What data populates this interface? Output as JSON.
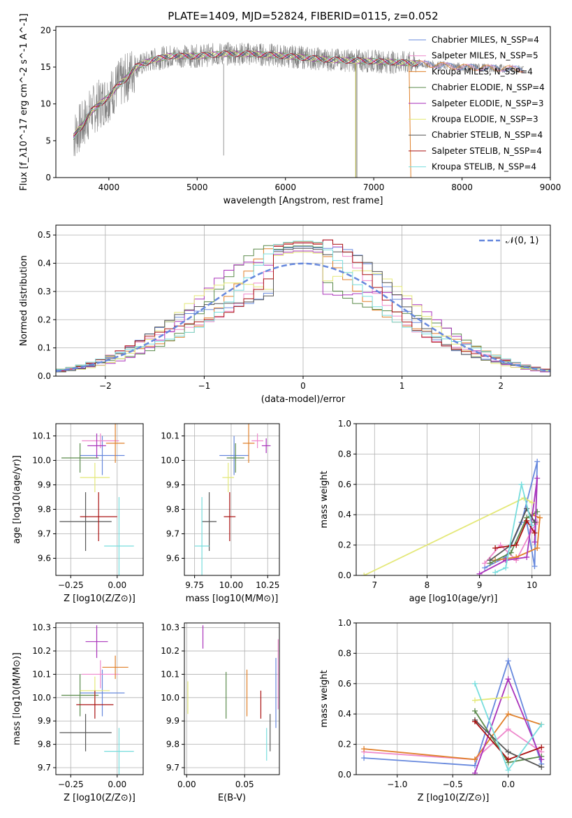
{
  "figure_title": "PLATE=1409, MJD=52824, FIBERID=0115, z=0.052",
  "series_colors": [
    "#6688dd",
    "#ee88cc",
    "#e0802a",
    "#5a8a4a",
    "#aa33bb",
    "#e4e878",
    "#555555",
    "#aa1111",
    "#77dddd"
  ],
  "chart_data": [
    {
      "id": "spectrum",
      "type": "line",
      "title": "PLATE=1409, MJD=52824, FIBERID=0115, z=0.052",
      "xlabel": "wavelength [Angstrom, rest frame]",
      "ylabel": "Flux [f_λ10^-17 erg cm^-2 s^-1 A^-1]",
      "xlim": [
        3400,
        9000
      ],
      "ylim": [
        0,
        20.5
      ],
      "xticks": [
        "4000",
        "5000",
        "6000",
        "7000",
        "8000",
        "9000"
      ],
      "yticks": [
        "0",
        "5",
        "10",
        "15",
        "20"
      ],
      "data_color": "#808080",
      "data_envelope": [
        [
          3600,
          5.5
        ],
        [
          3650,
          6.5
        ],
        [
          3700,
          7
        ],
        [
          3800,
          9
        ],
        [
          3900,
          10
        ],
        [
          4000,
          11
        ],
        [
          4100,
          12.5
        ],
        [
          4200,
          13.5
        ],
        [
          4300,
          15
        ],
        [
          4500,
          16
        ],
        [
          4700,
          16.5
        ],
        [
          5000,
          16.5
        ],
        [
          5300,
          16.8
        ],
        [
          5600,
          16.8
        ],
        [
          6000,
          16.5
        ],
        [
          6500,
          16
        ],
        [
          7000,
          15.8
        ],
        [
          7500,
          15.5
        ],
        [
          8000,
          15
        ],
        [
          8500,
          14.8
        ],
        [
          8700,
          14.7
        ]
      ],
      "legend": [
        "Chabrier MILES, N_SSP=4",
        "Salpeter MILES, N_SSP=5",
        "Kroupa MILES, N_SSP=4",
        "Chabrier ELODIE, N_SSP=4",
        "Salpeter ELODIE, N_SSP=3",
        "Kroupa ELODIE, N_SSP=3",
        "Chabrier STELIB, N_SSP=4",
        "Salpeter STELIB, N_SSP=4",
        "Kroupa STELIB, N_SSP=4"
      ],
      "grid": false
    },
    {
      "id": "residuals",
      "type": "step",
      "xlabel": "(data-model)/error",
      "ylabel": "Normed distribution",
      "xlim": [
        -2.5,
        2.5
      ],
      "ylim": [
        0,
        0.535
      ],
      "xticks": [
        "−2",
        "−1",
        "0",
        "1",
        "2"
      ],
      "yticks": [
        "0.0",
        "0.1",
        "0.2",
        "0.3",
        "0.4",
        "0.5"
      ],
      "legend": [
        "𝒩(0, 1)"
      ],
      "grid": true
    },
    {
      "id": "age_vs_Z",
      "type": "errorbar",
      "xlabel": "Z [log10(Z/Z⊙)]",
      "ylabel": "age [log10(age/yr)]",
      "xlim": [
        -0.33,
        0.14
      ],
      "ylim": [
        9.53,
        10.15
      ],
      "xticks": [
        "−0.25",
        "0.00"
      ],
      "yticks": [
        "9.6",
        "9.7",
        "9.8",
        "9.9",
        "10.0",
        "10.1"
      ],
      "points": [
        [
          -0.08,
          10.02,
          0.12,
          0.08
        ],
        [
          -0.09,
          10.08,
          0.1,
          0.03
        ],
        [
          -0.01,
          10.07,
          0.05,
          0.08
        ],
        [
          -0.2,
          10.01,
          0.1,
          0.06
        ],
        [
          -0.11,
          10.06,
          0.05,
          0.05
        ],
        [
          -0.12,
          9.93,
          0.08,
          0.06
        ],
        [
          -0.17,
          9.75,
          0.14,
          0.12
        ],
        [
          -0.1,
          9.77,
          0.1,
          0.1
        ],
        [
          0.01,
          9.65,
          0.08,
          0.2
        ]
      ],
      "grid": true
    },
    {
      "id": "age_vs_mass",
      "type": "errorbar",
      "xlabel": "mass [log10(M/M⊙)]",
      "ylabel": "",
      "xlim": [
        9.68,
        10.33
      ],
      "ylim": [
        9.53,
        10.15
      ],
      "xticks": [
        "9.75",
        "10.00",
        "10.25"
      ],
      "yticks": [
        "9.6",
        "9.7",
        "9.8",
        "9.9",
        "10.0",
        "10.1"
      ],
      "points": [
        [
          10.02,
          10.02,
          0.1,
          0.08
        ],
        [
          10.18,
          10.08,
          0.04,
          0.03
        ],
        [
          10.12,
          10.07,
          0.04,
          0.08
        ],
        [
          10.03,
          10.01,
          0.06,
          0.06
        ],
        [
          10.24,
          10.06,
          0.03,
          0.03
        ],
        [
          9.98,
          9.93,
          0.04,
          0.06
        ],
        [
          9.85,
          9.75,
          0.05,
          0.12
        ],
        [
          9.99,
          9.77,
          0.04,
          0.1
        ],
        [
          9.8,
          9.65,
          0.05,
          0.2
        ]
      ],
      "grid": true
    },
    {
      "id": "massweight_vs_age",
      "type": "line",
      "xlabel": "age [log10(age/yr)]",
      "ylabel": "mass weight",
      "xlim": [
        6.65,
        10.35
      ],
      "ylim": [
        0,
        1.0
      ],
      "xticks": [
        "7",
        "8",
        "9",
        "10"
      ],
      "yticks": [
        "0.0",
        "0.2",
        "0.4",
        "0.6",
        "0.8",
        "1.0"
      ],
      "series": [
        {
          "x": [
            9.1,
            9.5,
            9.8,
            10.1,
            10.05,
            9.9
          ],
          "y": [
            0.05,
            0.12,
            0.35,
            0.75,
            0.06,
            0.35
          ]
        },
        {
          "x": [
            9.1,
            9.4,
            9.7,
            10.0,
            10.1
          ],
          "y": [
            0.08,
            0.2,
            0.1,
            0.3,
            0.35
          ]
        },
        {
          "x": [
            9.3,
            9.7,
            10.1,
            10.15,
            10.0
          ],
          "y": [
            0.1,
            0.12,
            0.18,
            0.38,
            0.4
          ]
        },
        {
          "x": [
            9.2,
            9.6,
            9.9,
            10.1
          ],
          "y": [
            0.08,
            0.15,
            0.38,
            0.42
          ]
        },
        {
          "x": [
            9.0,
            9.5,
            9.9,
            10.1,
            10.05
          ],
          "y": [
            0.01,
            0.1,
            0.12,
            0.64,
            0.22
          ]
        },
        {
          "x": [
            6.8,
            9.85,
            10.0
          ],
          "y": [
            0.0,
            0.51,
            0.48
          ]
        },
        {
          "x": [
            9.2,
            9.6,
            9.9,
            10.05
          ],
          "y": [
            0.1,
            0.2,
            0.44,
            0.35
          ]
        },
        {
          "x": [
            9.3,
            9.7,
            9.9,
            10.05
          ],
          "y": [
            0.18,
            0.2,
            0.36,
            0.28
          ]
        },
        {
          "x": [
            9.3,
            9.5,
            9.8,
            10.0
          ],
          "y": [
            0.02,
            0.05,
            0.6,
            0.33
          ]
        }
      ],
      "grid": true
    },
    {
      "id": "mass_vs_Z",
      "type": "errorbar",
      "xlabel": "Z [log10(Z/Z⊙)]",
      "ylabel": "mass [log10(M/M⊙)]",
      "xlim": [
        -0.33,
        0.14
      ],
      "ylim": [
        9.67,
        10.32
      ],
      "xticks": [
        "−0.25",
        "0.00"
      ],
      "yticks": [
        "9.7",
        "9.8",
        "9.9",
        "10.0",
        "10.1",
        "10.2",
        "10.3"
      ],
      "points": [
        [
          -0.08,
          10.02,
          0.12,
          0.1
        ],
        [
          -0.09,
          10.1,
          0.1,
          0.06
        ],
        [
          -0.01,
          10.13,
          0.07,
          0.05
        ],
        [
          -0.2,
          10.01,
          0.1,
          0.09
        ],
        [
          -0.11,
          10.24,
          0.06,
          0.07
        ],
        [
          -0.12,
          10.03,
          0.08,
          0.06
        ],
        [
          -0.17,
          9.85,
          0.14,
          0.08
        ],
        [
          -0.12,
          9.97,
          0.1,
          0.06
        ],
        [
          0.01,
          9.77,
          0.08,
          0.1
        ]
      ],
      "grid": true
    },
    {
      "id": "mass_vs_ebv",
      "type": "errorbar",
      "xlabel": "E(B-V)",
      "ylabel": "",
      "xlim": [
        -0.002,
        0.08
      ],
      "ylim": [
        9.67,
        10.32
      ],
      "xticks": [
        "0.00",
        "0.05"
      ],
      "yticks": [
        "9.7",
        "9.8",
        "9.9",
        "10.0",
        "10.1",
        "10.2",
        "10.3"
      ],
      "points": [
        [
          0.077,
          10.02,
          0,
          0.15
        ],
        [
          0.079,
          10.1,
          0,
          0.15
        ],
        [
          0.052,
          10.02,
          0,
          0.1
        ],
        [
          0.034,
          10.01,
          0,
          0.1
        ],
        [
          0.014,
          10.26,
          0,
          0.05
        ],
        [
          0.001,
          10.0,
          0,
          0.07
        ],
        [
          0.072,
          9.85,
          0,
          0.08
        ],
        [
          0.064,
          9.97,
          0,
          0.06
        ],
        [
          0.069,
          9.8,
          0,
          0.07
        ]
      ],
      "grid": true
    },
    {
      "id": "massweight_vs_Z",
      "type": "line",
      "xlabel": "Z [log10(Z/Z⊙)]",
      "ylabel": "mass weight",
      "xlim": [
        -1.37,
        0.38
      ],
      "ylim": [
        0,
        1.0
      ],
      "xticks": [
        "−1.0",
        "−0.5",
        "0.0"
      ],
      "yticks": [
        "0.0",
        "0.2",
        "0.4",
        "0.6",
        "0.8",
        "1.0"
      ],
      "series": [
        {
          "x": [
            -1.3,
            -0.3,
            0.0,
            0.3
          ],
          "y": [
            0.11,
            0.06,
            0.75,
            0.07
          ]
        },
        {
          "x": [
            -1.3,
            -0.3,
            0.0,
            0.3
          ],
          "y": [
            0.15,
            0.1,
            0.3,
            0.15
          ]
        },
        {
          "x": [
            -1.3,
            -0.3,
            0.0,
            0.3
          ],
          "y": [
            0.17,
            0.1,
            0.4,
            0.33
          ]
        },
        {
          "x": [
            -0.3,
            0.0,
            0.3
          ],
          "y": [
            0.42,
            0.08,
            0.12
          ]
        },
        {
          "x": [
            -0.3,
            0.0,
            0.3
          ],
          "y": [
            0.01,
            0.63,
            0.1
          ]
        },
        {
          "x": [
            -0.3,
            0.0
          ],
          "y": [
            0.49,
            0.51
          ]
        },
        {
          "x": [
            -0.3,
            0.0,
            0.3
          ],
          "y": [
            0.36,
            0.15,
            0.05
          ]
        },
        {
          "x": [
            -0.3,
            0.0,
            0.3
          ],
          "y": [
            0.35,
            0.1,
            0.18
          ]
        },
        {
          "x": [
            -0.3,
            0.0,
            0.3
          ],
          "y": [
            0.6,
            0.03,
            0.33
          ]
        }
      ],
      "grid": true
    }
  ]
}
